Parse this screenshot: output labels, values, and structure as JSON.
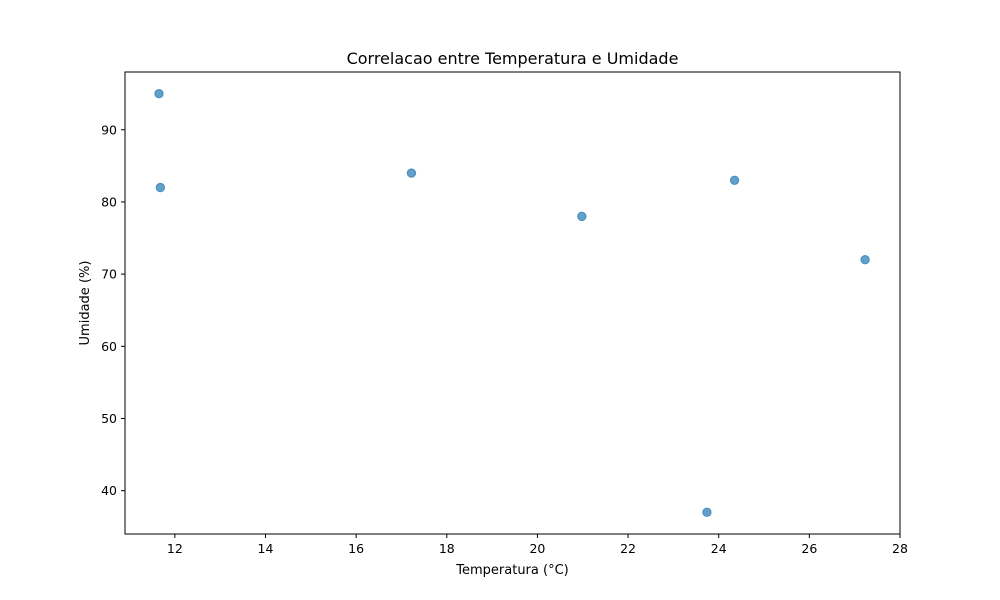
{
  "chart_data": {
    "type": "scatter",
    "title": "Correlacao entre Temperatura e Umidade",
    "xlabel": "Temperatura (°C)",
    "ylabel": "Umidade (%)",
    "xlim": [
      10.9,
      28.0
    ],
    "ylim": [
      34.0,
      98.0
    ],
    "xticks": [
      12,
      14,
      16,
      18,
      20,
      22,
      24,
      26,
      28
    ],
    "yticks": [
      40,
      50,
      60,
      70,
      80,
      90
    ],
    "grid": false,
    "series": [
      {
        "color": "#1f77b4",
        "points": [
          {
            "x": 11.65,
            "y": 95
          },
          {
            "x": 11.68,
            "y": 82
          },
          {
            "x": 17.22,
            "y": 84
          },
          {
            "x": 20.98,
            "y": 78
          },
          {
            "x": 24.35,
            "y": 83
          },
          {
            "x": 27.23,
            "y": 72
          },
          {
            "x": 23.74,
            "y": 37
          }
        ]
      }
    ]
  }
}
